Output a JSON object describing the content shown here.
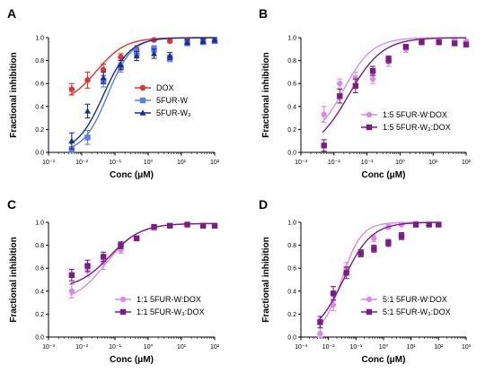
{
  "colors": {
    "red": "#e8302c",
    "blue": "#5a7ee8",
    "navy": "#1c2d91",
    "pink": "#d98ce6",
    "purple": "#7b1c86"
  },
  "chart_data": [
    {
      "type": "scatter",
      "panel": "A",
      "xlabel": "Conc (μM)",
      "ylabel": "Fractional inhibition",
      "xscale": "log",
      "xlim": [
        0.001,
        100
      ],
      "ylim": [
        0,
        1.0
      ],
      "xticks": [
        "10⁻³",
        "10⁻²",
        "10⁻¹",
        "10⁰",
        "10¹",
        "10²"
      ],
      "yticks": [
        "0.0",
        "0.2",
        "0.4",
        "0.6",
        "0.8",
        "1.0"
      ],
      "legend_position": "bottom-right",
      "series": [
        {
          "name": "DOX",
          "color": "red",
          "marker": "circle",
          "x": [
            0.005,
            0.015,
            0.045,
            0.15,
            0.45,
            1.5,
            4.5,
            15,
            45,
            100
          ],
          "y": [
            0.55,
            0.63,
            0.72,
            0.83,
            0.9,
            0.98,
            0.97,
            0.98,
            0.98,
            0.97
          ],
          "err": [
            0.05,
            0.07,
            0.05,
            0.03,
            0.03,
            0.01,
            0.01,
            0.01,
            0.01,
            0.01
          ],
          "fit": {
            "bottom": 0.42,
            "top": 1.0,
            "ec50": 0.028,
            "hill": 1.0
          }
        },
        {
          "name": "5FUR-W",
          "color": "blue",
          "marker": "square",
          "x": [
            0.005,
            0.015,
            0.045,
            0.15,
            0.45,
            1.5,
            4.5,
            15,
            45,
            100
          ],
          "y": [
            0.02,
            0.13,
            0.62,
            0.74,
            0.87,
            0.9,
            0.82,
            0.95,
            0.96,
            0.97
          ],
          "err": [
            0.03,
            0.06,
            0.05,
            0.04,
            0.03,
            0.03,
            0.03,
            0.02,
            0.02,
            0.02
          ],
          "fit": {
            "bottom": 0.0,
            "top": 1.0,
            "ec50": 0.06,
            "hill": 1.2
          }
        },
        {
          "name": "5FUR-W₃",
          "color": "navy",
          "marker": "triangle",
          "x": [
            0.005,
            0.015,
            0.045,
            0.15,
            0.45,
            1.5,
            4.5,
            15,
            45,
            100
          ],
          "y": [
            0.1,
            0.36,
            0.65,
            0.76,
            0.84,
            0.86,
            0.84,
            0.96,
            0.97,
            0.98
          ],
          "err": [
            0.07,
            0.06,
            0.05,
            0.04,
            0.04,
            0.04,
            0.03,
            0.02,
            0.02,
            0.02
          ],
          "fit": {
            "bottom": 0.0,
            "top": 1.0,
            "ec50": 0.045,
            "hill": 1.1
          }
        }
      ]
    },
    {
      "type": "scatter",
      "panel": "B",
      "xlabel": "Conc (μM)",
      "ylabel": "Fractional inhibition",
      "xscale": "log",
      "xlim": [
        0.001,
        100
      ],
      "ylim": [
        0,
        1.0
      ],
      "xticks": [
        "10⁻³",
        "10⁻²",
        "10⁻¹",
        "10⁰",
        "10¹",
        "10²"
      ],
      "yticks": [
        "0.0",
        "0.2",
        "0.4",
        "0.6",
        "0.8",
        "1.0"
      ],
      "legend_position": "bottom-right",
      "series": [
        {
          "name": "1:5 5FUR-W:DOX",
          "color": "pink",
          "marker": "circle",
          "x": [
            0.005,
            0.015,
            0.045,
            0.15,
            0.45,
            1.5,
            4.5,
            15,
            45,
            100
          ],
          "y": [
            0.33,
            0.6,
            0.65,
            0.64,
            0.79,
            0.9,
            0.97,
            0.98,
            0.98,
            0.97
          ],
          "err": [
            0.07,
            0.04,
            0.05,
            0.04,
            0.04,
            0.03,
            0.02,
            0.02,
            0.01,
            0.01
          ],
          "fit": {
            "bottom": 0.1,
            "top": 1.0,
            "ec50": 0.02,
            "hill": 1.0
          }
        },
        {
          "name": "1:5 5FUR-W₃:DOX",
          "color": "purple",
          "marker": "square",
          "x": [
            0.005,
            0.015,
            0.045,
            0.15,
            0.45,
            1.5,
            4.5,
            15,
            45,
            100
          ],
          "y": [
            0.06,
            0.49,
            0.58,
            0.71,
            0.81,
            0.92,
            0.96,
            0.96,
            0.95,
            0.94
          ],
          "err": [
            0.05,
            0.06,
            0.06,
            0.04,
            0.03,
            0.02,
            0.02,
            0.02,
            0.01,
            0.01
          ],
          "fit": {
            "bottom": 0.0,
            "top": 1.0,
            "ec50": 0.028,
            "hill": 0.85
          }
        }
      ]
    },
    {
      "type": "scatter",
      "panel": "C",
      "xlabel": "Conc (μM)",
      "ylabel": "Fractional inhibition",
      "xscale": "log",
      "xlim": [
        0.001,
        100
      ],
      "ylim": [
        0,
        1.0
      ],
      "xticks": [
        "10⁻³",
        "10⁻²",
        "10⁻¹",
        "10⁰",
        "10¹",
        "10²"
      ],
      "yticks": [
        "0.0",
        "0.2",
        "0.4",
        "0.6",
        "0.8",
        "1.0"
      ],
      "legend_position": "bottom-right",
      "series": [
        {
          "name": "1:1 5FUR-W:DOX",
          "color": "pink",
          "marker": "circle",
          "x": [
            0.005,
            0.015,
            0.045,
            0.15,
            0.45,
            1.5,
            4.5,
            15,
            45,
            100
          ],
          "y": [
            0.4,
            0.58,
            0.65,
            0.76,
            0.86,
            0.95,
            0.97,
            0.98,
            0.97,
            0.97
          ],
          "err": [
            0.06,
            0.05,
            0.06,
            0.03,
            0.02,
            0.02,
            0.01,
            0.01,
            0.01,
            0.01
          ],
          "fit": {
            "bottom": 0.3,
            "top": 0.99,
            "ec50": 0.055,
            "hill": 0.9
          }
        },
        {
          "name": "1:1 5FUR-W₃:DOX",
          "color": "purple",
          "marker": "square",
          "x": [
            0.005,
            0.015,
            0.045,
            0.15,
            0.45,
            1.5,
            4.5,
            15,
            45,
            100
          ],
          "y": [
            0.54,
            0.62,
            0.7,
            0.8,
            0.86,
            0.96,
            0.97,
            0.98,
            0.97,
            0.97
          ],
          "err": [
            0.05,
            0.05,
            0.04,
            0.03,
            0.02,
            0.02,
            0.01,
            0.01,
            0.01,
            0.01
          ],
          "fit": {
            "bottom": 0.42,
            "top": 0.99,
            "ec50": 0.07,
            "hill": 0.9
          }
        }
      ]
    },
    {
      "type": "scatter",
      "panel": "D",
      "xlabel": "Conc (μM)",
      "ylabel": "Fractional inhibition",
      "xscale": "log",
      "xlim": [
        0.001,
        1000
      ],
      "ylim": [
        0,
        1.0
      ],
      "xticks": [
        "10⁻³",
        "10⁻²",
        "10⁻¹",
        "10⁰",
        "10¹",
        "10²",
        "10³"
      ],
      "yticks": [
        "0.0",
        "0.2",
        "0.4",
        "0.6",
        "0.8",
        "1.0"
      ],
      "legend_position": "bottom-right",
      "series": [
        {
          "name": "5:1 5FUR-W:DOX",
          "color": "pink",
          "marker": "circle",
          "x": [
            0.005,
            0.015,
            0.045,
            0.15,
            0.45,
            1.5,
            4.5,
            15,
            45,
            100
          ],
          "y": [
            0.03,
            0.28,
            0.6,
            0.73,
            0.86,
            0.96,
            0.98,
            0.99,
            0.98,
            0.98
          ],
          "err": [
            0.05,
            0.05,
            0.05,
            0.03,
            0.03,
            0.02,
            0.01,
            0.01,
            0.01,
            0.01
          ],
          "fit": {
            "bottom": 0.0,
            "top": 1.0,
            "ec50": 0.03,
            "hill": 1.2
          }
        },
        {
          "name": "5:1 5FUR-W₃:DOX",
          "color": "purple",
          "marker": "square",
          "x": [
            0.005,
            0.015,
            0.045,
            0.15,
            0.45,
            1.5,
            4.5,
            15,
            45,
            100
          ],
          "y": [
            0.13,
            0.38,
            0.56,
            0.73,
            0.77,
            0.82,
            0.88,
            0.98,
            0.98,
            0.98
          ],
          "err": [
            0.05,
            0.06,
            0.05,
            0.03,
            0.03,
            0.03,
            0.03,
            0.02,
            0.01,
            0.01
          ],
          "fit": {
            "bottom": 0.0,
            "top": 1.0,
            "ec50": 0.035,
            "hill": 0.85
          }
        }
      ]
    }
  ]
}
